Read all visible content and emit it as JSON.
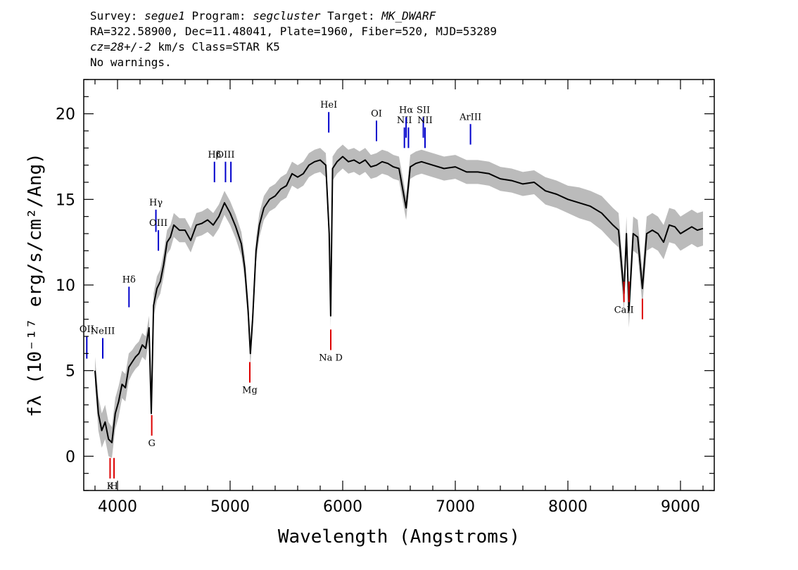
{
  "header": {
    "line1": {
      "survey_label": "Survey: ",
      "survey": "segue1",
      "program_label": " Program: ",
      "program": "segcluster",
      "target_label": " Target: ",
      "target": "MK_DWARF"
    },
    "line2": "RA=322.58900, Dec=11.48041, Plate=1960, Fiber=520, MJD=53289",
    "line3": {
      "cz": "cz=28+/-2",
      "rest": " km/s Class=STAR K5"
    },
    "line4": "No warnings."
  },
  "chart_data": {
    "type": "line",
    "xlabel": "Wavelength (Angstroms)",
    "ylabel_text": "fλ (10⁻¹⁷ erg/s/cm²/Ang)",
    "xlim": [
      3700,
      9300
    ],
    "ylim": [
      -2,
      22
    ],
    "xticks": [
      4000,
      5000,
      6000,
      7000,
      8000,
      9000
    ],
    "yticks": [
      0,
      5,
      10,
      15,
      20
    ],
    "colors": {
      "flux": "#000000",
      "error_band": "#bbbbbb",
      "emission": "#0000cc",
      "absorption": "#dd0000"
    },
    "series": [
      {
        "role": "flux",
        "x": [
          3800,
          3830,
          3860,
          3890,
          3920,
          3950,
          3980,
          4010,
          4040,
          4070,
          4100,
          4130,
          4160,
          4190,
          4220,
          4250,
          4280,
          4300,
          4320,
          4350,
          4380,
          4410,
          4440,
          4470,
          4500,
          4550,
          4600,
          4650,
          4700,
          4750,
          4800,
          4850,
          4900,
          4950,
          5000,
          5050,
          5100,
          5130,
          5160,
          5180,
          5200,
          5230,
          5260,
          5300,
          5350,
          5400,
          5450,
          5500,
          5550,
          5600,
          5650,
          5700,
          5750,
          5800,
          5850,
          5880,
          5893,
          5910,
          5950,
          6000,
          6050,
          6100,
          6150,
          6200,
          6250,
          6300,
          6350,
          6400,
          6450,
          6500,
          6563,
          6600,
          6650,
          6700,
          6800,
          6900,
          7000,
          7100,
          7200,
          7300,
          7400,
          7500,
          7600,
          7700,
          7800,
          7900,
          8000,
          8100,
          8200,
          8300,
          8400,
          8450,
          8498,
          8520,
          8542,
          8580,
          8620,
          8662,
          8700,
          8750,
          8800,
          8850,
          8900,
          8950,
          9000,
          9050,
          9100,
          9150,
          9200
        ],
        "flux": [
          5.0,
          2.5,
          1.5,
          2.0,
          1.0,
          0.8,
          2.5,
          3.2,
          4.2,
          4.0,
          5.2,
          5.5,
          5.8,
          6.0,
          6.5,
          6.3,
          7.5,
          2.5,
          8.8,
          9.8,
          10.2,
          11.2,
          12.5,
          12.8,
          13.5,
          13.2,
          13.2,
          12.6,
          13.5,
          13.6,
          13.8,
          13.5,
          14.0,
          14.8,
          14.2,
          13.4,
          12.4,
          11.0,
          8.5,
          6.0,
          8.0,
          12.0,
          13.5,
          14.5,
          15.0,
          15.2,
          15.6,
          15.8,
          16.5,
          16.3,
          16.5,
          17.0,
          17.2,
          17.3,
          17.0,
          13.0,
          8.2,
          16.8,
          17.2,
          17.5,
          17.2,
          17.3,
          17.1,
          17.3,
          16.9,
          17.0,
          17.2,
          17.1,
          16.9,
          16.8,
          14.5,
          16.9,
          17.1,
          17.2,
          17.0,
          16.8,
          16.9,
          16.6,
          16.6,
          16.5,
          16.2,
          16.1,
          15.9,
          16.0,
          15.5,
          15.3,
          15.0,
          14.8,
          14.6,
          14.2,
          13.5,
          13.2,
          9.5,
          13.0,
          8.5,
          13.0,
          12.8,
          9.8,
          13.0,
          13.2,
          13.0,
          12.5,
          13.5,
          13.4,
          13.0,
          13.2,
          13.4,
          13.2,
          13.3
        ],
        "error": [
          0.8,
          1.0,
          1.0,
          1.0,
          1.0,
          0.9,
          0.9,
          0.9,
          0.8,
          0.8,
          0.8,
          0.7,
          0.7,
          0.7,
          0.7,
          0.7,
          0.7,
          0.7,
          0.7,
          0.7,
          0.7,
          0.7,
          0.7,
          0.7,
          0.7,
          0.7,
          0.7,
          0.7,
          0.7,
          0.7,
          0.7,
          0.7,
          0.7,
          0.7,
          0.7,
          0.7,
          0.7,
          0.7,
          0.7,
          0.7,
          0.7,
          0.7,
          0.7,
          0.7,
          0.7,
          0.7,
          0.7,
          0.7,
          0.7,
          0.7,
          0.7,
          0.7,
          0.7,
          0.7,
          0.7,
          0.7,
          0.7,
          0.7,
          0.7,
          0.7,
          0.7,
          0.7,
          0.7,
          0.7,
          0.7,
          0.7,
          0.7,
          0.7,
          0.7,
          0.7,
          0.7,
          0.7,
          0.7,
          0.7,
          0.7,
          0.7,
          0.7,
          0.7,
          0.7,
          0.7,
          0.7,
          0.7,
          0.7,
          0.7,
          0.8,
          0.8,
          0.8,
          0.9,
          0.9,
          1.0,
          1.0,
          1.0,
          1.0,
          1.0,
          1.0,
          1.0,
          1.0,
          1.0,
          1.0,
          1.0,
          1.0,
          1.0,
          1.0,
          1.0,
          1.0,
          1.0,
          1.0,
          1.0,
          1.0
        ]
      }
    ],
    "emission_lines": [
      {
        "label": "OII",
        "x": 3727,
        "y0": 5.7,
        "y1": 7.0
      },
      {
        "label": "NeIII",
        "x": 3869,
        "y0": 5.7,
        "y1": 6.9
      },
      {
        "label": "Hδ",
        "x": 4102,
        "y0": 8.7,
        "y1": 9.9
      },
      {
        "label": "Hγ",
        "x": 4341,
        "y0": 13.1,
        "y1": 14.4
      },
      {
        "label": "OIII",
        "x": 4363,
        "y0": 12.0,
        "y1": 13.2
      },
      {
        "label": "Hβ",
        "x": 4861,
        "y0": 16.0,
        "y1": 17.2
      },
      {
        "label": "OIII",
        "x": 4959,
        "y0": 16.0,
        "y1": 17.2
      },
      {
        "label": "",
        "x": 5007,
        "y0": 16.0,
        "y1": 17.2
      },
      {
        "label": "HeI",
        "x": 5876,
        "y0": 18.9,
        "y1": 20.1
      },
      {
        "label": "OI",
        "x": 6300,
        "y0": 18.4,
        "y1": 19.6
      },
      {
        "label": "NII",
        "x": 6548,
        "y0": 18.0,
        "y1": 19.2
      },
      {
        "label": "Hα",
        "x": 6563,
        "y0": 18.6,
        "y1": 19.8
      },
      {
        "label": "",
        "x": 6584,
        "y0": 18.0,
        "y1": 19.2
      },
      {
        "label": "SII",
        "x": 6716,
        "y0": 18.6,
        "y1": 19.8
      },
      {
        "label": "NII",
        "x": 6731,
        "y0": 18.0,
        "y1": 19.2
      },
      {
        "label": "ArIII",
        "x": 7135,
        "y0": 18.2,
        "y1": 19.4
      }
    ],
    "absorption_lines": [
      {
        "label": "K",
        "x": 3934,
        "y0": -1.3,
        "y1": -0.1
      },
      {
        "label": "H",
        "x": 3969,
        "y0": -1.3,
        "y1": -0.1
      },
      {
        "label": "G",
        "x": 4304,
        "y0": 1.2,
        "y1": 2.4
      },
      {
        "label": "Mg",
        "x": 5175,
        "y0": 4.3,
        "y1": 5.5
      },
      {
        "label": "Na D",
        "x": 5894,
        "y0": 6.2,
        "y1": 7.4
      },
      {
        "label": "CaII",
        "x": 8498,
        "y0": 9.0,
        "y1": 10.2
      },
      {
        "label": "",
        "x": 8542,
        "y0": 9.0,
        "y1": 10.2
      },
      {
        "label": "",
        "x": 8662,
        "y0": 8.0,
        "y1": 9.2
      }
    ]
  }
}
